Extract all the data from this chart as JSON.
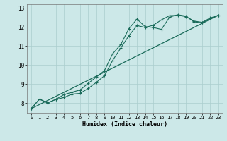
{
  "xlabel": "Humidex (Indice chaleur)",
  "bg_color": "#cce8e8",
  "line_color": "#1a6b5a",
  "grid_color": "#aacece",
  "xlim": [
    -0.5,
    23.5
  ],
  "ylim": [
    7.5,
    13.2
  ],
  "xticks": [
    0,
    1,
    2,
    3,
    4,
    5,
    6,
    7,
    8,
    9,
    10,
    11,
    12,
    13,
    14,
    15,
    16,
    17,
    18,
    19,
    20,
    21,
    22,
    23
  ],
  "yticks": [
    8,
    9,
    10,
    11,
    12,
    13
  ],
  "line1_x": [
    0,
    1,
    2,
    3,
    4,
    5,
    6,
    7,
    8,
    9,
    10,
    11,
    12,
    13,
    14,
    15,
    16,
    17,
    18,
    19,
    20,
    21,
    22,
    23
  ],
  "line1_y": [
    7.72,
    8.22,
    8.02,
    8.2,
    8.45,
    8.58,
    8.7,
    9.05,
    9.38,
    9.72,
    10.6,
    11.08,
    11.92,
    12.42,
    12.02,
    11.98,
    11.88,
    12.52,
    12.65,
    12.58,
    12.28,
    12.22,
    12.45,
    12.62
  ],
  "line2_x": [
    0,
    1,
    2,
    3,
    4,
    5,
    6,
    7,
    8,
    9,
    10,
    11,
    12,
    13,
    14,
    15,
    16,
    17,
    18,
    19,
    20,
    21,
    22,
    23
  ],
  "line2_y": [
    7.72,
    8.22,
    8.02,
    8.2,
    8.3,
    8.48,
    8.52,
    8.78,
    9.1,
    9.45,
    10.25,
    10.9,
    11.55,
    12.08,
    11.98,
    12.1,
    12.38,
    12.6,
    12.62,
    12.55,
    12.32,
    12.25,
    12.48,
    12.62
  ],
  "line3_x": [
    0,
    23
  ],
  "line3_y": [
    7.72,
    12.62
  ]
}
